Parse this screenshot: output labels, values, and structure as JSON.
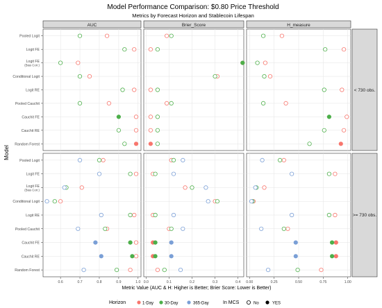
{
  "chart_data": {
    "type": "scatter",
    "title": "Model Performance Comparison: $0.80 Price Threshold",
    "subtitle": "Metrics by Forecast Horizon and Stablecoin Lifespan",
    "xlabel": "Metric Value (AUC & H: Higher is Better; Brier Score: Lower is Better)",
    "ylabel": "Model",
    "facet_columns": [
      "AUC",
      "Brier_Score",
      "H_measure"
    ],
    "facet_rows": [
      "< 730 obs.",
      ">= 730 obs."
    ],
    "models": [
      "Pooled Logit",
      "Logit FE",
      "Logit FE\n(Bias Corr.)",
      "Conditional Logit",
      "Logit RE",
      "Pooled Cauchit",
      "Cauchit FE",
      "Cauchit RE",
      "Random Forest"
    ],
    "xlim": [
      0.5,
      1.01
    ],
    "x_ticks": [
      "0.6",
      "0.7",
      "0.8",
      "0.9",
      "1.0",
      "0.0",
      "0.1",
      "0.2",
      "0.3",
      "0.4",
      "0.00",
      "0.25",
      "0.50",
      "0.75",
      "1.00"
    ],
    "grid": true,
    "legend": {
      "position": "bottom",
      "horizon_title": "Horizon",
      "horizon_items": [
        {
          "label": "1-Day",
          "color": "#F8766D"
        },
        {
          "label": "30-Day",
          "color": "#4DAF4A"
        },
        {
          "label": "365-Day",
          "color": "#7A9FD6"
        }
      ],
      "mcs_title": "In MCS",
      "mcs_items": [
        "No",
        "YES"
      ]
    },
    "series": [
      {
        "metric": "AUC",
        "lifespan": "< 730 obs.",
        "horizon": "1-Day",
        "values": [
          0.84,
          0.98,
          0.69,
          0.75,
          0.98,
          0.85,
          0.99,
          0.99,
          0.99
        ],
        "in_mcs": [
          false,
          false,
          false,
          false,
          false,
          false,
          false,
          false,
          true
        ]
      },
      {
        "metric": "AUC",
        "lifespan": "< 730 obs.",
        "horizon": "30-Day",
        "values": [
          0.7,
          0.93,
          0.6,
          0.7,
          0.92,
          0.7,
          0.9,
          0.9,
          0.93
        ],
        "in_mcs": [
          false,
          false,
          false,
          false,
          false,
          false,
          true,
          false,
          false
        ]
      },
      {
        "metric": "AUC",
        "lifespan": ">= 730 obs.",
        "horizon": "1-Day",
        "values": [
          0.82,
          0.99,
          0.71,
          0.6,
          0.98,
          0.84,
          0.99,
          0.99,
          0.96
        ],
        "in_mcs": [
          false,
          false,
          false,
          false,
          false,
          false,
          false,
          false,
          false
        ]
      },
      {
        "metric": "AUC",
        "lifespan": ">= 730 obs.",
        "horizon": "30-Day",
        "values": [
          0.8,
          0.96,
          0.63,
          0.57,
          0.96,
          0.83,
          0.96,
          0.97,
          0.89
        ],
        "in_mcs": [
          false,
          false,
          false,
          false,
          false,
          false,
          true,
          true,
          false
        ]
      },
      {
        "metric": "AUC",
        "lifespan": ">= 730 obs.",
        "horizon": "365-Day",
        "values": [
          0.7,
          0.8,
          0.62,
          0.53,
          0.81,
          0.69,
          0.78,
          0.81,
          0.72
        ],
        "in_mcs": [
          false,
          false,
          false,
          false,
          false,
          false,
          true,
          true,
          false
        ]
      },
      {
        "metric": "Brier_Score",
        "lifespan": "< 730 obs.",
        "horizon": "1-Day",
        "values": [
          0.09,
          0.02,
          0.42,
          0.31,
          0.02,
          0.09,
          0.02,
          0.02,
          0.02
        ],
        "in_mcs": [
          false,
          false,
          true,
          false,
          false,
          false,
          false,
          false,
          true
        ]
      },
      {
        "metric": "Brier_Score",
        "lifespan": "< 730 obs.",
        "horizon": "30-Day",
        "values": [
          0.11,
          0.05,
          0.42,
          0.3,
          0.05,
          0.11,
          0.05,
          0.05,
          0.05
        ],
        "in_mcs": [
          false,
          false,
          true,
          false,
          false,
          false,
          false,
          false,
          false
        ]
      },
      {
        "metric": "Brier_Score",
        "lifespan": ">= 730 obs.",
        "horizon": "1-Day",
        "values": [
          0.11,
          0.03,
          0.17,
          0.3,
          0.03,
          0.1,
          0.03,
          0.03,
          0.05
        ],
        "in_mcs": [
          false,
          false,
          false,
          false,
          false,
          false,
          true,
          true,
          false
        ]
      },
      {
        "metric": "Brier_Score",
        "lifespan": ">= 730 obs.",
        "horizon": "30-Day",
        "values": [
          0.12,
          0.04,
          0.2,
          0.31,
          0.04,
          0.11,
          0.04,
          0.04,
          0.08
        ],
        "in_mcs": [
          false,
          false,
          false,
          false,
          false,
          false,
          true,
          true,
          false
        ]
      },
      {
        "metric": "Brier_Score",
        "lifespan": ">= 730 obs.",
        "horizon": "365-Day",
        "values": [
          0.16,
          0.12,
          0.26,
          0.27,
          0.12,
          0.16,
          0.11,
          0.11,
          0.15
        ],
        "in_mcs": [
          false,
          false,
          false,
          false,
          false,
          false,
          true,
          true,
          false
        ]
      },
      {
        "metric": "H_measure",
        "lifespan": "< 730 obs.",
        "horizon": "1-Day",
        "values": [
          0.33,
          0.96,
          0.16,
          0.21,
          0.94,
          0.37,
          0.99,
          0.96,
          0.93
        ],
        "in_mcs": [
          false,
          false,
          false,
          false,
          false,
          false,
          false,
          false,
          true
        ]
      },
      {
        "metric": "H_measure",
        "lifespan": "< 730 obs.",
        "horizon": "30-Day",
        "values": [
          0.14,
          0.77,
          0.08,
          0.15,
          0.76,
          0.14,
          0.81,
          0.76,
          0.61
        ],
        "in_mcs": [
          false,
          false,
          false,
          false,
          false,
          false,
          true,
          false,
          false
        ]
      },
      {
        "metric": "H_measure",
        "lifespan": ">= 730 obs.",
        "horizon": "1-Day",
        "values": [
          0.35,
          0.87,
          0.15,
          0.04,
          0.87,
          0.39,
          0.88,
          0.88,
          0.73
        ],
        "in_mcs": [
          false,
          false,
          false,
          false,
          false,
          false,
          true,
          true,
          false
        ]
      },
      {
        "metric": "H_measure",
        "lifespan": ">= 730 obs.",
        "horizon": "30-Day",
        "values": [
          0.31,
          0.81,
          0.07,
          0.03,
          0.81,
          0.35,
          0.84,
          0.84,
          0.49
        ],
        "in_mcs": [
          false,
          false,
          false,
          false,
          false,
          false,
          true,
          true,
          false
        ]
      },
      {
        "metric": "H_measure",
        "lifespan": ">= 730 obs.",
        "horizon": "365-Day",
        "values": [
          0.13,
          0.43,
          0.06,
          0.02,
          0.43,
          0.12,
          0.47,
          0.47,
          0.19
        ],
        "in_mcs": [
          false,
          false,
          false,
          false,
          false,
          false,
          true,
          true,
          false
        ]
      }
    ]
  }
}
